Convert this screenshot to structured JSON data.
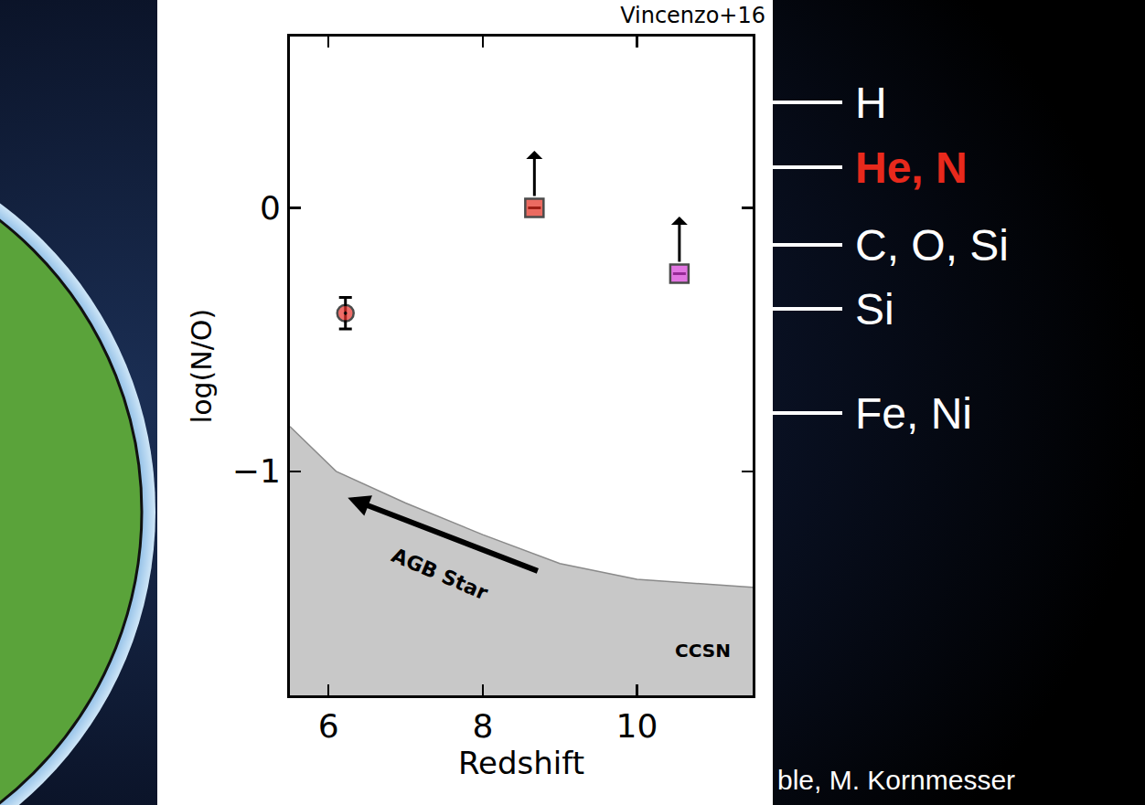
{
  "chart_data": {
    "type": "scatter",
    "caption": "Vincenzo+16",
    "x_label": "Redshift",
    "y_label": "log(N/O)",
    "xlim": [
      5.5,
      11.5
    ],
    "xticks": [
      6,
      8,
      10
    ],
    "ylim": [
      -1.85,
      0.65
    ],
    "yticks": [
      {
        "value": -1,
        "label": "−1"
      },
      0
    ],
    "x": [
      6.22,
      8.67,
      10.55
    ],
    "values": [
      -0.4,
      0,
      -0.25
    ],
    "error": [
      0.06,
      null,
      null
    ],
    "lower_limit": [
      false,
      true,
      true
    ],
    "colors": [
      "#e8302a",
      "#e32d1f",
      "#d63bd6"
    ],
    "marker": [
      "circle-dot",
      "square",
      "square"
    ],
    "region": {
      "label": "CCSN",
      "x": [
        5.5,
        6.1,
        7,
        8,
        9,
        10,
        11.5
      ],
      "values": [
        -0.83,
        -1.0,
        -1.12,
        -1.24,
        -1.35,
        -1.41,
        -1.44
      ],
      "color": "#c8c8c8"
    },
    "annotations": [
      {
        "text": "AGB Star"
      }
    ],
    "grid": false
  },
  "slide": {
    "layers": [
      {
        "label": "H"
      },
      {
        "label": "He, N",
        "highlight": true
      },
      {
        "label": "C, O, Si"
      },
      {
        "label": "Si"
      },
      {
        "label": "Fe, Ni"
      }
    ],
    "credit": "ble, M. Kornmesser"
  }
}
